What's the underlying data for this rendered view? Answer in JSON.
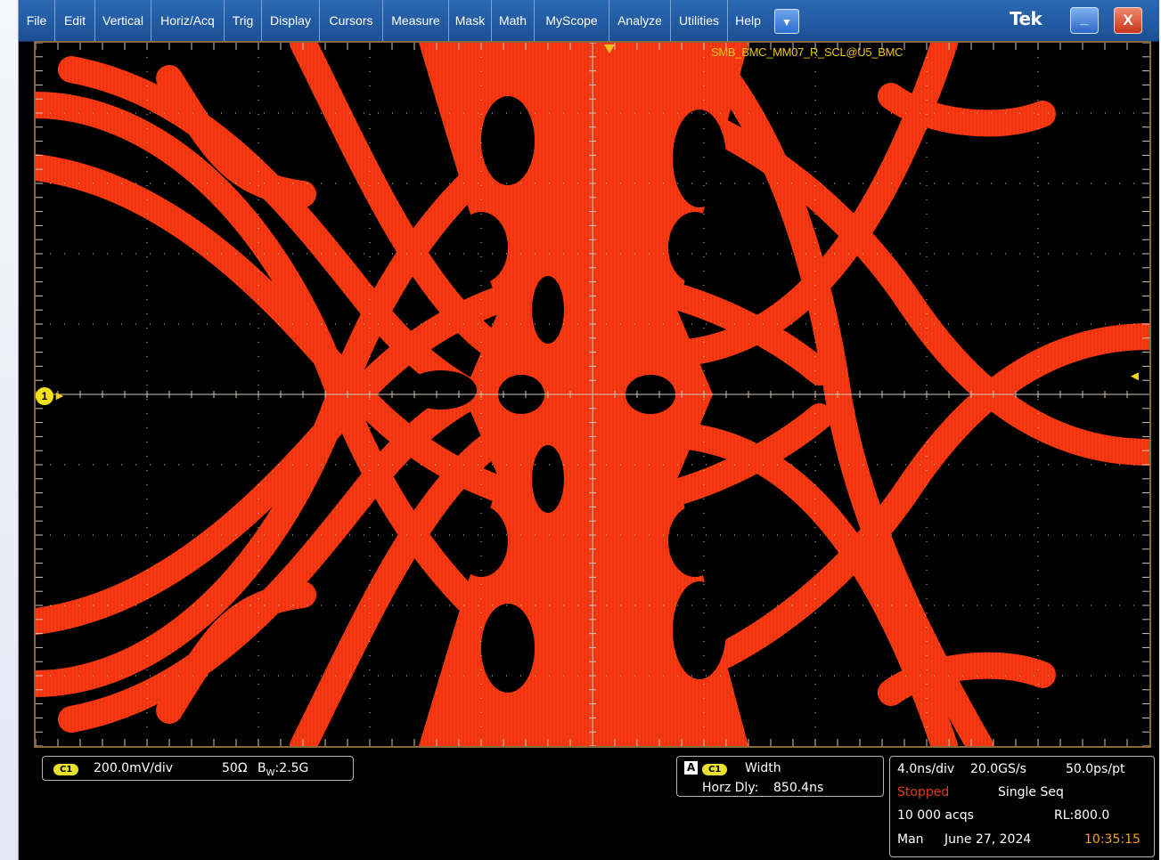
{
  "menubar": {
    "items": [
      "File",
      "Edit",
      "Vertical",
      "Horiz/Acq",
      "Trig",
      "Display",
      "Cursors",
      "Measure",
      "Mask",
      "Math",
      "MyScope",
      "Analyze",
      "Utilities",
      "Help"
    ],
    "dropdown_icon": "chevron-down-icon",
    "brand": "Tek",
    "minimize_label": "_",
    "close_label": "X"
  },
  "display": {
    "waveform_label": "SMB_BMC_MM07_R_SCL@U5_BMC",
    "ch1_marker": "1",
    "trace_color": "#ff3a12",
    "graticule_color": "#cfc6b8"
  },
  "vertical_panel": {
    "channel": "C1",
    "scale": "200.0mV/div",
    "impedance": "50Ω",
    "bw_prefix": "B",
    "bw_sub": "W",
    "bw_value": ":2.5G"
  },
  "measure_panel": {
    "badge": "A",
    "channel": "C1",
    "name": "Width",
    "horz_dly_label": "Horz Dly:",
    "horz_dly_value": "850.4ns"
  },
  "acq_panel": {
    "time_div": "4.0ns/div",
    "sample_rate": "20.0GS/s",
    "resolution": "50.0ps/pt",
    "status": "Stopped",
    "mode": "Single Seq",
    "acqs": "10 000 acqs",
    "record_length": "RL:800.0",
    "trigger_mode": "Man",
    "date": "June 27, 2024",
    "time": "10:35:15"
  }
}
